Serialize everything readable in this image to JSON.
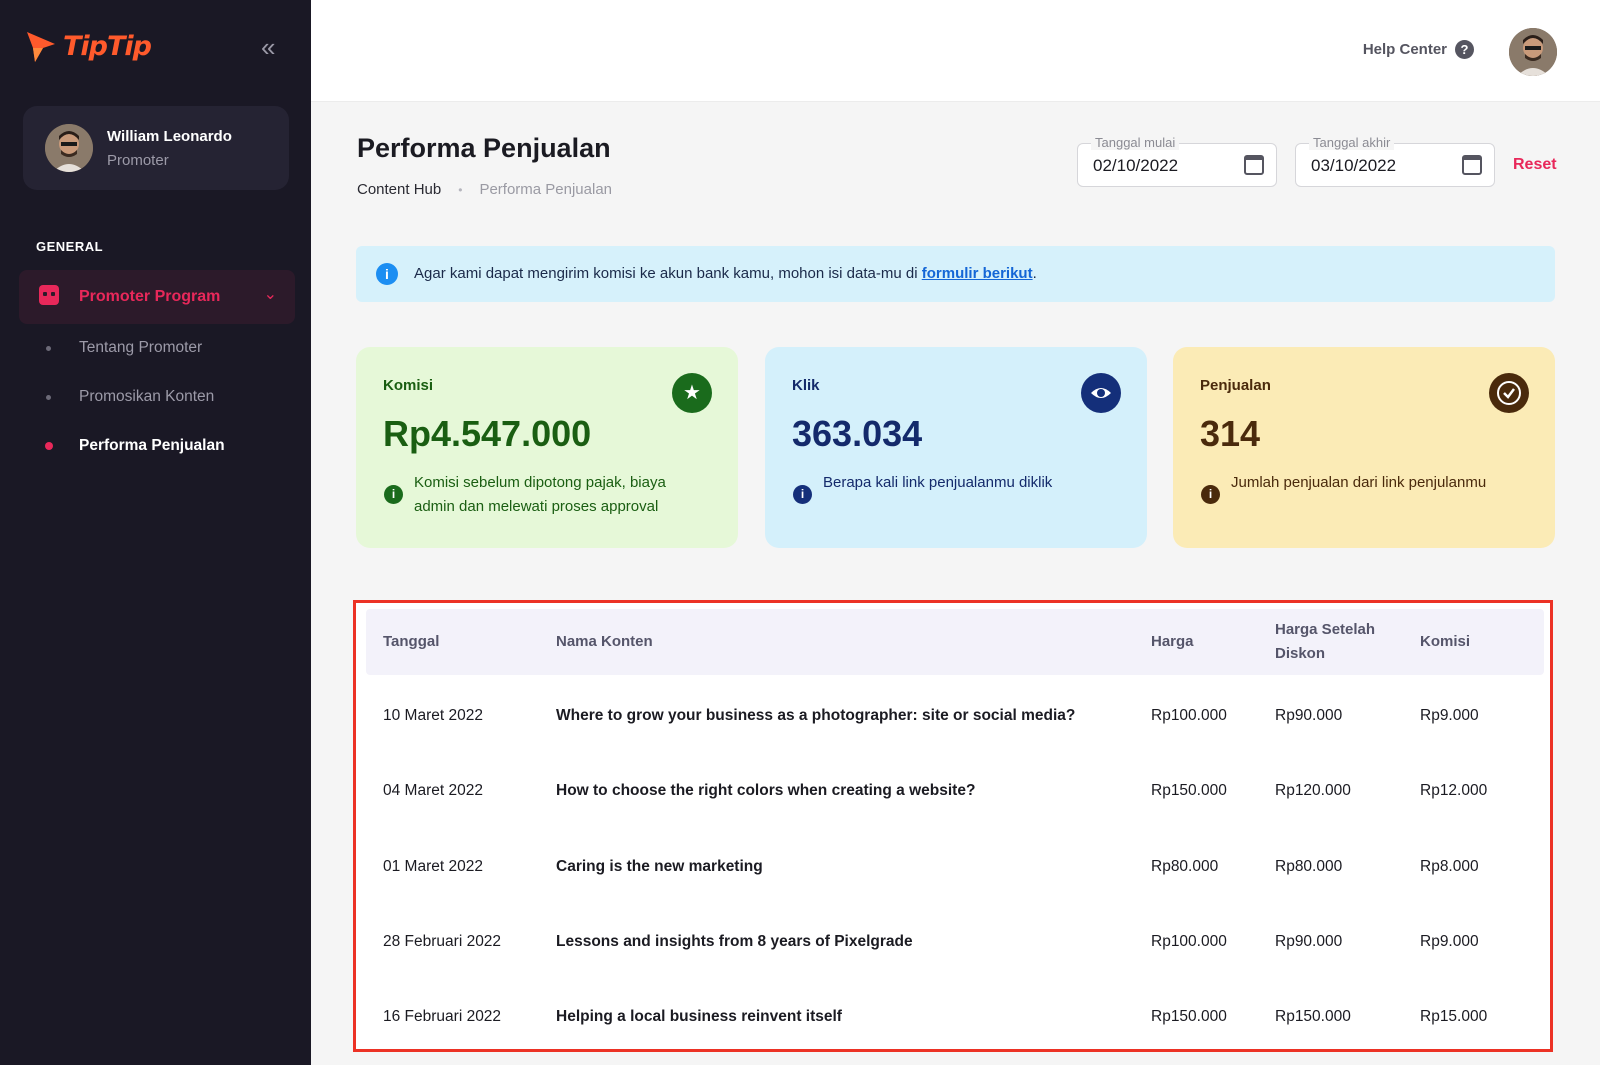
{
  "brand": {
    "name": "TipTip",
    "color": "#ff5a2c",
    "accent": "#e8285a"
  },
  "sidebar": {
    "collapse_icon": "double-chevron-left-icon",
    "user": {
      "name": "William Leonardo",
      "role": "Promoter"
    },
    "section_label": "GENERAL",
    "parent_item": {
      "label": "Promoter Program",
      "icon": "promoter-program-icon"
    },
    "sub_items": [
      {
        "label": "Tentang Promoter",
        "active": false
      },
      {
        "label": "Promosikan Konten",
        "active": false
      },
      {
        "label": "Performa Penjualan",
        "active": true
      }
    ]
  },
  "topbar": {
    "help_label": "Help Center",
    "help_icon": "question-icon"
  },
  "header": {
    "title": "Performa Penjualan",
    "breadcrumb": [
      "Content Hub",
      "Performa Penjualan"
    ],
    "start_date": {
      "label": "Tanggal mulai",
      "value": "02/10/2022"
    },
    "end_date": {
      "label": "Tanggal akhir",
      "value": "03/10/2022"
    },
    "reset_label": "Reset"
  },
  "banner": {
    "text": "Agar kami dapat mengirim komisi ke akun bank kamu, mohon isi data-mu di ",
    "link": "formulir berikut",
    "suffix": "."
  },
  "cards": [
    {
      "title": "Komisi",
      "value": "Rp4.547.000",
      "note": "Komisi sebelum dipotong pajak, biaya admin dan melewati proses approval",
      "icon": "star-icon",
      "bg": "#e6f8d8",
      "fg": "#1a5e12",
      "badge": "#1a6b1c"
    },
    {
      "title": "Klik",
      "value": "363.034",
      "note": "Berapa kali link penjualanmu diklik",
      "icon": "eye-icon",
      "bg": "#d4f0fb",
      "fg": "#142a6b",
      "badge": "#142f7a"
    },
    {
      "title": "Penjualan",
      "value": "314",
      "note": "Jumlah penjualan dari link penjulanmu",
      "icon": "check-circle-icon",
      "bg": "#fbebb6",
      "fg": "#4a2a0c",
      "badge": "#4a2a0c"
    }
  ],
  "table": {
    "headers": [
      "Tanggal",
      "Nama Konten",
      "Harga",
      "Harga Setelah Diskon",
      "Komisi"
    ],
    "rows": [
      [
        "10 Maret 2022",
        "Where to grow your business as a photographer: site or social media?",
        "Rp100.000",
        "Rp90.000",
        "Rp9.000"
      ],
      [
        "04 Maret 2022",
        "How to choose the right colors when creating a website?",
        "Rp150.000",
        "Rp120.000",
        "Rp12.000"
      ],
      [
        "01 Maret 2022",
        "Caring is the new marketing",
        "Rp80.000",
        "Rp80.000",
        "Rp8.000"
      ],
      [
        "28 Februari 2022",
        "Lessons and insights from 8 years of Pixelgrade",
        "Rp100.000",
        "Rp90.000",
        "Rp9.000"
      ],
      [
        "16 Februari 2022",
        "Helping a local business reinvent itself",
        "Rp150.000",
        "Rp150.000",
        "Rp15.000"
      ]
    ]
  }
}
